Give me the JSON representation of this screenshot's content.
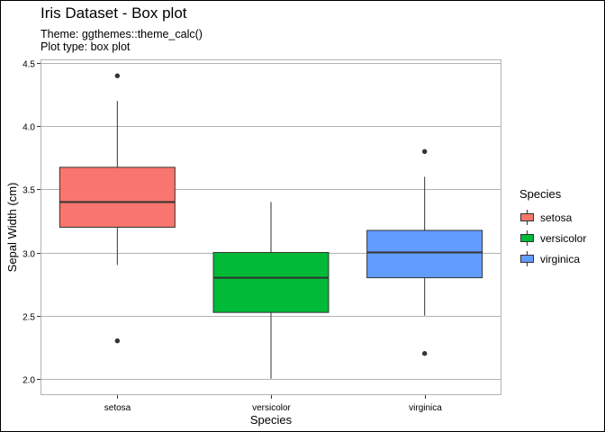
{
  "plot": {
    "title": "Iris Dataset - Box plot",
    "subtitle_lines": [
      "Theme: ggthemes::theme_calc()",
      "Plot type: box plot"
    ]
  },
  "chart_data": {
    "type": "box",
    "xlabel": "Species",
    "ylabel": "Sepal Width (cm)",
    "ylim": [
      1.87,
      4.53
    ],
    "yticks": [
      2.0,
      2.5,
      3.0,
      3.5,
      4.0,
      4.5
    ],
    "ytick_labels": [
      "2.0",
      "2.5",
      "3.0",
      "3.5",
      "4.0",
      "4.5"
    ],
    "categories": [
      "setosa",
      "versicolor",
      "virginica"
    ],
    "grid": "horizontal major lines",
    "legend_position": "right",
    "legend_title": "Species",
    "series": [
      {
        "name": "setosa",
        "color": "#F8766D",
        "min": 2.9,
        "q1": 3.2,
        "median": 3.4,
        "q3": 3.675,
        "max": 4.2,
        "outliers": [
          2.3,
          4.4
        ]
      },
      {
        "name": "versicolor",
        "color": "#00BA38",
        "min": 2.0,
        "q1": 2.525,
        "median": 2.8,
        "q3": 3.0,
        "max": 3.4,
        "outliers": []
      },
      {
        "name": "virginica",
        "color": "#619CFF",
        "min": 2.5,
        "q1": 2.8,
        "median": 3.0,
        "q3": 3.175,
        "max": 3.6,
        "outliers": [
          2.2,
          3.8
        ]
      }
    ]
  }
}
